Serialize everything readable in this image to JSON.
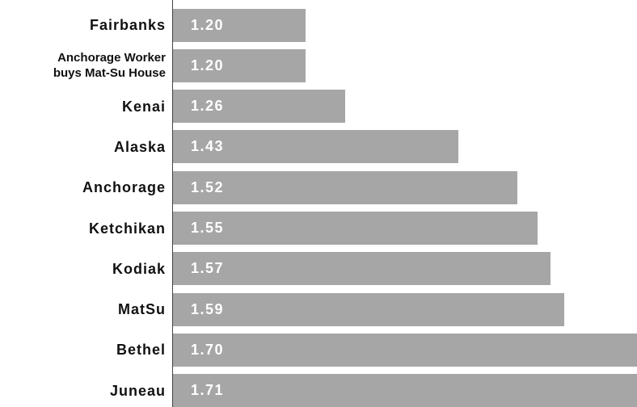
{
  "chart_data": {
    "type": "bar",
    "orientation": "horizontal",
    "categories": [
      "Fairbanks",
      "Anchorage Worker\nbuys Mat-Su House",
      "Kenai",
      "Alaska",
      "Anchorage",
      "Ketchikan",
      "Kodiak",
      "MatSu",
      "Bethel",
      "Juneau"
    ],
    "values": [
      1.2,
      1.2,
      1.26,
      1.43,
      1.52,
      1.55,
      1.57,
      1.59,
      1.7,
      1.71
    ],
    "value_labels": [
      "1.20",
      "1.20",
      "1.26",
      "1.43",
      "1.52",
      "1.55",
      "1.57",
      "1.59",
      "1.70",
      "1.71"
    ],
    "color": "#a6a6a6",
    "xlim": [
      1.0,
      1.7
    ]
  }
}
